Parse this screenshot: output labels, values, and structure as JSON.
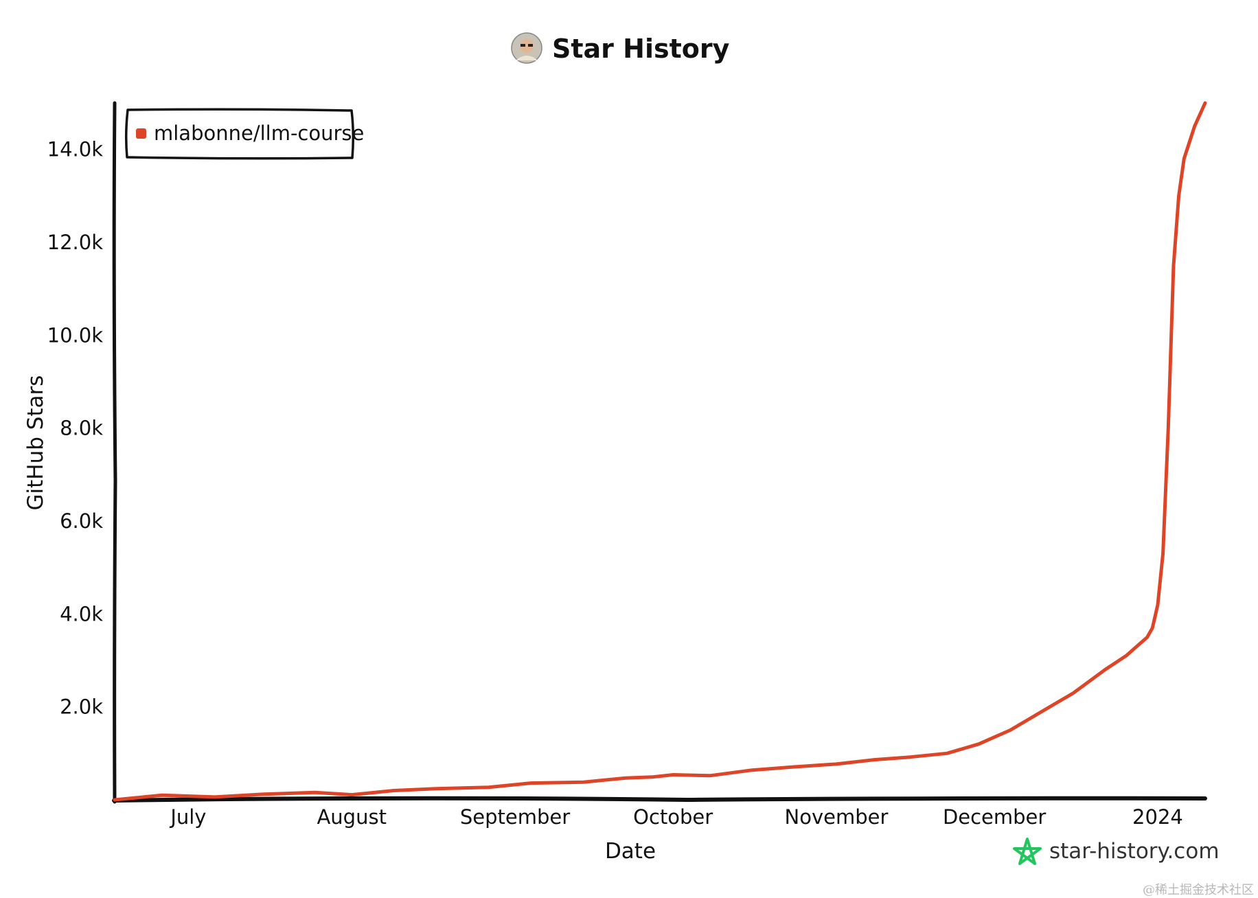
{
  "chart_data": {
    "type": "line",
    "title": "Star History",
    "xlabel": "Date",
    "ylabel": "GitHub Stars",
    "ylim": [
      0,
      15000
    ],
    "yticks": [
      {
        "value": 2000,
        "label": "2.0k"
      },
      {
        "value": 4000,
        "label": "4.0k"
      },
      {
        "value": 6000,
        "label": "6.0k"
      },
      {
        "value": 8000,
        "label": "8.0k"
      },
      {
        "value": 10000,
        "label": "10.0k"
      },
      {
        "value": 12000,
        "label": "12.0k"
      },
      {
        "value": 14000,
        "label": "14.0k"
      }
    ],
    "xlim": [
      "2023-06-17",
      "2024-01-10"
    ],
    "xticks": [
      {
        "date": "2023-07-01",
        "label": "July"
      },
      {
        "date": "2023-08-01",
        "label": "August"
      },
      {
        "date": "2023-09-01",
        "label": "September"
      },
      {
        "date": "2023-10-01",
        "label": "October"
      },
      {
        "date": "2023-11-01",
        "label": "November"
      },
      {
        "date": "2023-12-01",
        "label": "December"
      },
      {
        "date": "2024-01-01",
        "label": "2024"
      }
    ],
    "legend_position": "top-left",
    "series": [
      {
        "name": "mlabonne/llm-course",
        "color": "#dd4528",
        "points": [
          {
            "x": "2023-06-17",
            "y": 0
          },
          {
            "x": "2023-06-26",
            "y": 100
          },
          {
            "x": "2023-07-06",
            "y": 60
          },
          {
            "x": "2023-07-15",
            "y": 120
          },
          {
            "x": "2023-07-25",
            "y": 160
          },
          {
            "x": "2023-08-01",
            "y": 110
          },
          {
            "x": "2023-08-09",
            "y": 200
          },
          {
            "x": "2023-08-17",
            "y": 240
          },
          {
            "x": "2023-08-27",
            "y": 270
          },
          {
            "x": "2023-09-04",
            "y": 360
          },
          {
            "x": "2023-09-14",
            "y": 380
          },
          {
            "x": "2023-09-22",
            "y": 470
          },
          {
            "x": "2023-09-27",
            "y": 490
          },
          {
            "x": "2023-10-01",
            "y": 540
          },
          {
            "x": "2023-10-08",
            "y": 520
          },
          {
            "x": "2023-10-16",
            "y": 640
          },
          {
            "x": "2023-10-24",
            "y": 710
          },
          {
            "x": "2023-11-01",
            "y": 770
          },
          {
            "x": "2023-11-08",
            "y": 860
          },
          {
            "x": "2023-11-15",
            "y": 920
          },
          {
            "x": "2023-11-22",
            "y": 1000
          },
          {
            "x": "2023-11-28",
            "y": 1200
          },
          {
            "x": "2023-12-04",
            "y": 1500
          },
          {
            "x": "2023-12-10",
            "y": 1900
          },
          {
            "x": "2023-12-16",
            "y": 2300
          },
          {
            "x": "2023-12-22",
            "y": 2800
          },
          {
            "x": "2023-12-26",
            "y": 3100
          },
          {
            "x": "2023-12-30",
            "y": 3500
          },
          {
            "x": "2023-12-31",
            "y": 3700
          },
          {
            "x": "2024-01-01",
            "y": 4200
          },
          {
            "x": "2024-01-02",
            "y": 5300
          },
          {
            "x": "2024-01-03",
            "y": 8000
          },
          {
            "x": "2024-01-04",
            "y": 11500
          },
          {
            "x": "2024-01-05",
            "y": 13000
          },
          {
            "x": "2024-01-06",
            "y": 13800
          },
          {
            "x": "2024-01-08",
            "y": 14500
          },
          {
            "x": "2024-01-10",
            "y": 15000
          }
        ]
      }
    ]
  },
  "branding": {
    "site_label": "star-history.com",
    "star_color": "#22c55e"
  },
  "watermark": {
    "text": "@稀土掘金技术社区"
  }
}
